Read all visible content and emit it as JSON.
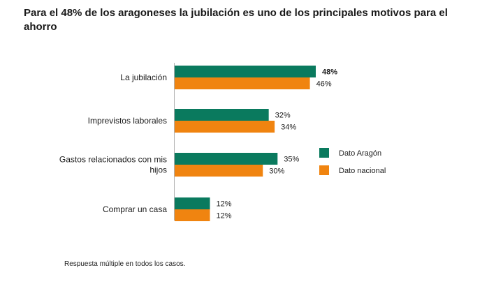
{
  "title": "Para el 48% de los aragoneses la jubilación es uno de los principales motivos para el ahorro",
  "footnote": "Respuesta múltiple en todos los casos.",
  "colors": {
    "aragon": "#0a7a5e",
    "nacional": "#f08410",
    "axis": "#b0b0b0"
  },
  "chart_data": {
    "type": "bar",
    "orientation": "horizontal",
    "categories": [
      [
        "La jubilación"
      ],
      [
        "Imprevistos laborales"
      ],
      [
        "Gastos relacionados con mis",
        "hijos"
      ],
      [
        "Comprar un casa"
      ]
    ],
    "series": [
      {
        "name": "Dato Aragón",
        "values": [
          48,
          32,
          35,
          12
        ],
        "labels": [
          "48%",
          "32%",
          "35%",
          "12%"
        ],
        "bold": [
          true,
          false,
          false,
          false
        ]
      },
      {
        "name": "Dato nacional",
        "values": [
          46,
          34,
          30,
          12
        ],
        "labels": [
          "46%",
          "34%",
          "30%",
          "12%"
        ],
        "bold": [
          false,
          false,
          false,
          false
        ]
      }
    ],
    "xlim": [
      0,
      48
    ],
    "legend_position": "right",
    "grid": false
  }
}
